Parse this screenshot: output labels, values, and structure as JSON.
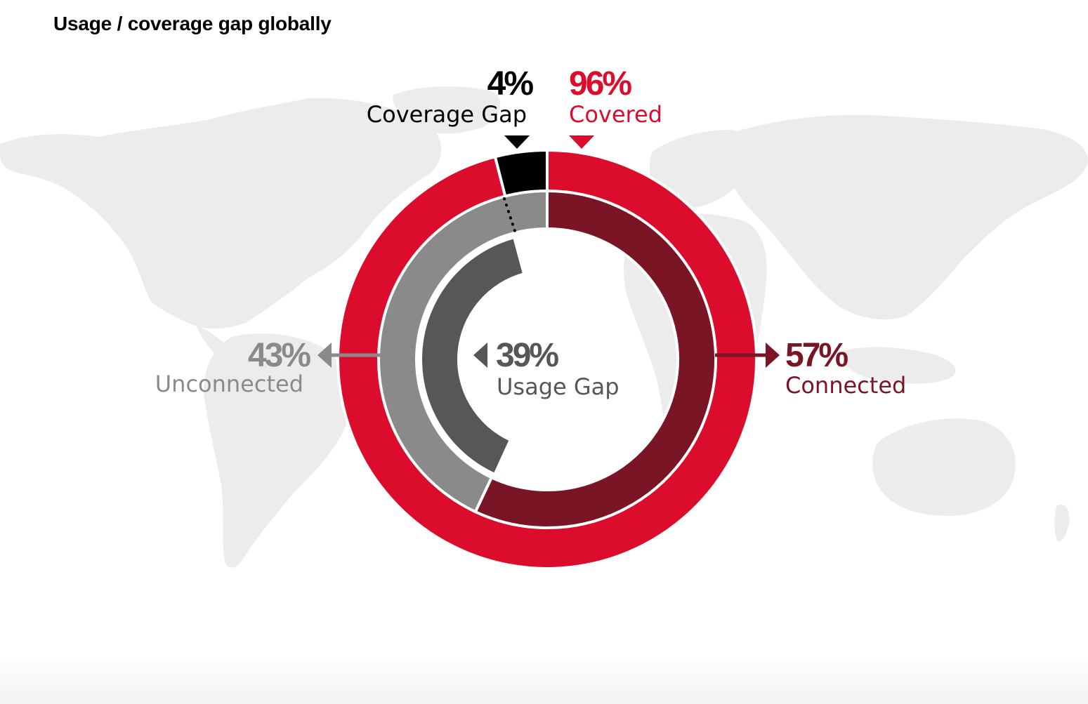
{
  "chart_data": {
    "type": "pie",
    "title": "Usage / coverage gap globally",
    "rings": [
      {
        "name": "outer",
        "segments": [
          {
            "label": "Coverage Gap",
            "value": 4,
            "value_label": "4%",
            "color": "#000000"
          },
          {
            "label": "Covered",
            "value": 96,
            "value_label": "96%",
            "color": "#dc0c2c"
          }
        ]
      },
      {
        "name": "middle",
        "segments": [
          {
            "label": "Connected",
            "value": 57,
            "value_label": "57%",
            "color": "#7a1526"
          },
          {
            "label": "Unconnected",
            "value": 43,
            "value_label": "43%",
            "color": "#8a8a8a"
          }
        ]
      },
      {
        "name": "inner",
        "segments": [
          {
            "label": "Usage Gap",
            "value": 39,
            "value_label": "39%",
            "color": "#575756"
          }
        ]
      }
    ],
    "colors": {
      "covered": "#dc0c2c",
      "coverage_gap": "#000000",
      "connected": "#7a1526",
      "unconnected": "#8a8a8a",
      "usage_gap": "#575756",
      "unconnected_text": "#8a8a8a",
      "usage_gap_text": "#575756",
      "background_map": "#ececec"
    }
  }
}
